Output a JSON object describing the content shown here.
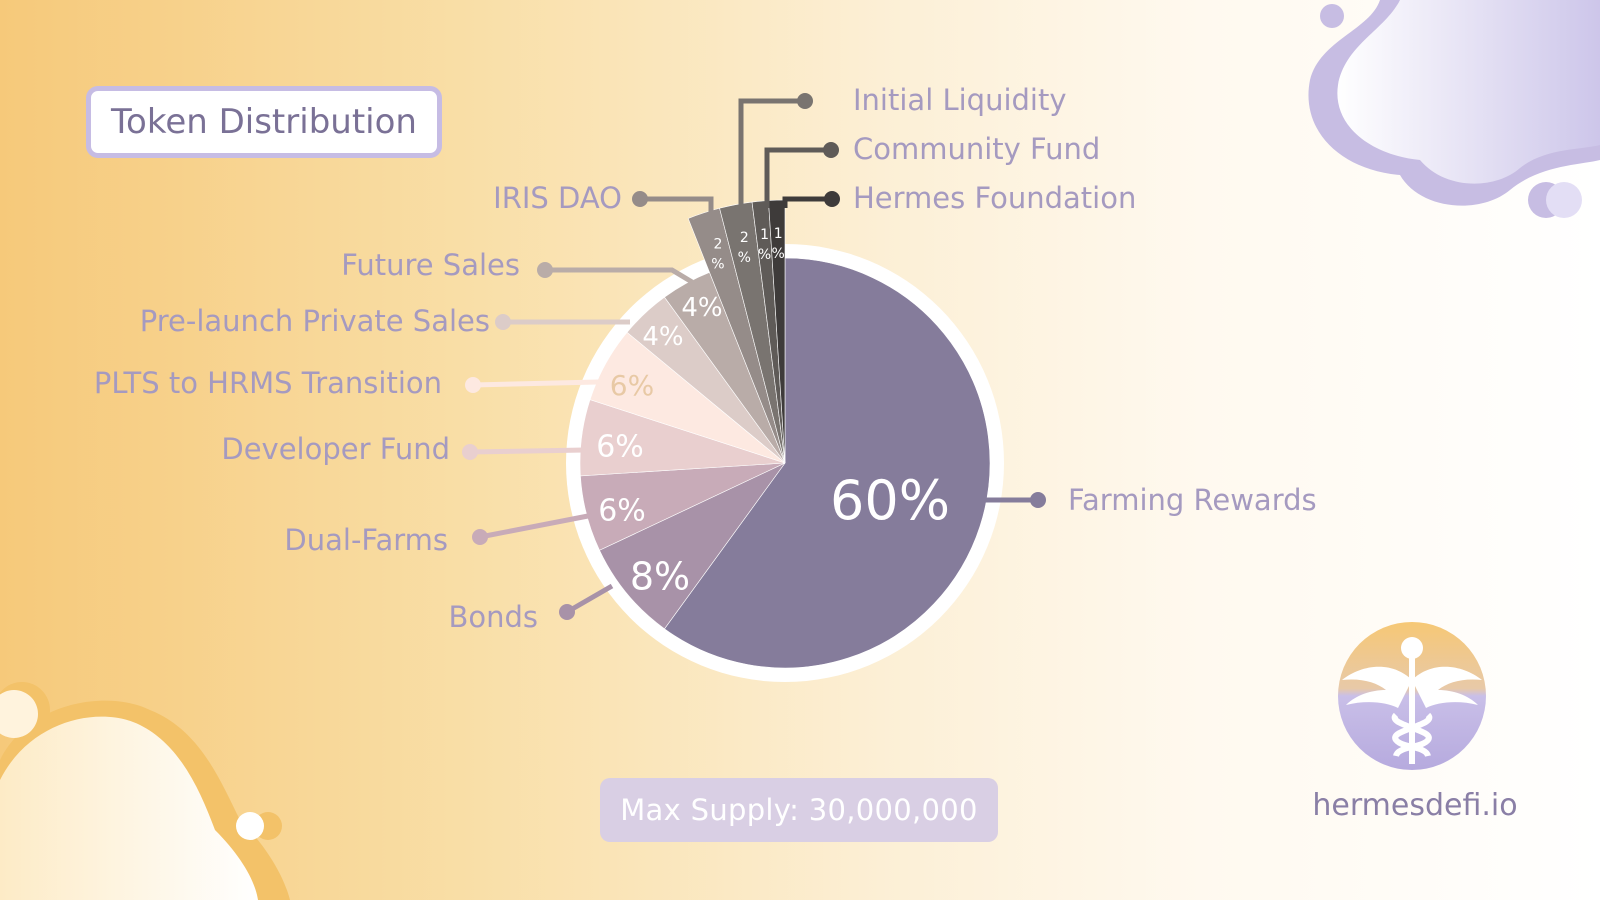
{
  "title": "Token Distribution",
  "footer": {
    "supply_label": "Max Supply: 30,000,000",
    "site": "hermesdefi.io"
  },
  "colors": {
    "label_text": "#a59ac0",
    "title_border": "#c6bce4",
    "supply_bg": "#d9cfe4"
  },
  "chart_data": {
    "type": "pie",
    "unit": "%",
    "slices": [
      {
        "label": "Farming Rewards",
        "value": 60,
        "display": "60%",
        "color": "#857c9b"
      },
      {
        "label": "Bonds",
        "value": 8,
        "display": "8%",
        "color": "#a892a8"
      },
      {
        "label": "Dual-Farms",
        "value": 6,
        "display": "6%",
        "color": "#c8abb8"
      },
      {
        "label": "Developer Fund",
        "value": 6,
        "display": "6%",
        "color": "#e9cfcf"
      },
      {
        "label": "PLTS to HRMS Transition",
        "value": 6,
        "display": "6%",
        "color": "#fde9e1"
      },
      {
        "label": "Pre-launch Private Sales",
        "value": 4,
        "display": "4%",
        "color": "#dcccc8"
      },
      {
        "label": "Future Sales",
        "value": 4,
        "display": "4%",
        "color": "#b9aca8"
      },
      {
        "label": "IRIS DAO",
        "value": 2,
        "display": "2 %",
        "color": "#958c89"
      },
      {
        "label": "Initial Liquidity",
        "value": 2,
        "display": "2 %",
        "color": "#797470"
      },
      {
        "label": "Community Fund",
        "value": 1,
        "display": "1 %",
        "color": "#5f5b58"
      },
      {
        "label": "Hermes Foundation",
        "value": 1,
        "display": "1 %",
        "color": "#3e3b3a"
      }
    ]
  }
}
